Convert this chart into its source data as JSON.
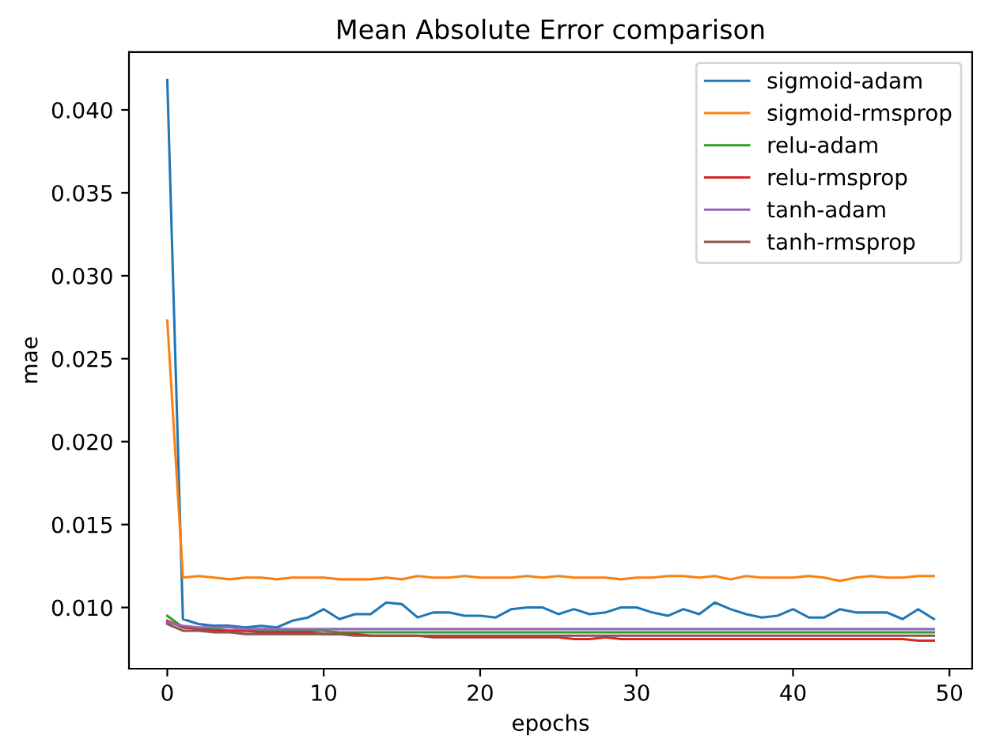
{
  "chart_data": {
    "type": "line",
    "title": "Mean Absolute Error comparison",
    "xlabel": "epochs",
    "ylabel": "mae",
    "x": [
      0,
      1,
      2,
      3,
      4,
      5,
      6,
      7,
      8,
      9,
      10,
      11,
      12,
      13,
      14,
      15,
      16,
      17,
      18,
      19,
      20,
      21,
      22,
      23,
      24,
      25,
      26,
      27,
      28,
      29,
      30,
      31,
      32,
      33,
      34,
      35,
      36,
      37,
      38,
      39,
      40,
      41,
      42,
      43,
      44,
      45,
      46,
      47,
      48,
      49
    ],
    "series": [
      {
        "name": "sigmoid-adam",
        "color": "#1f77b4",
        "values": [
          0.0418,
          0.0093,
          0.009,
          0.0089,
          0.0089,
          0.0088,
          0.0089,
          0.0088,
          0.0092,
          0.0094,
          0.0099,
          0.0093,
          0.0096,
          0.0096,
          0.0103,
          0.0102,
          0.0094,
          0.0097,
          0.0097,
          0.0095,
          0.0095,
          0.0094,
          0.0099,
          0.01,
          0.01,
          0.0096,
          0.0099,
          0.0096,
          0.0097,
          0.01,
          0.01,
          0.0097,
          0.0095,
          0.0099,
          0.0096,
          0.0103,
          0.0099,
          0.0096,
          0.0094,
          0.0095,
          0.0099,
          0.0094,
          0.0094,
          0.0099,
          0.0097,
          0.0097,
          0.0097,
          0.0093,
          0.0099,
          0.0093
        ]
      },
      {
        "name": "sigmoid-rmsprop",
        "color": "#ff7f0e",
        "values": [
          0.0273,
          0.0118,
          0.0119,
          0.0118,
          0.0117,
          0.0118,
          0.0118,
          0.0117,
          0.0118,
          0.0118,
          0.0118,
          0.0117,
          0.0117,
          0.0117,
          0.0118,
          0.0117,
          0.0119,
          0.0118,
          0.0118,
          0.0119,
          0.0118,
          0.0118,
          0.0118,
          0.0119,
          0.0118,
          0.0119,
          0.0118,
          0.0118,
          0.0118,
          0.0117,
          0.0118,
          0.0118,
          0.0119,
          0.0119,
          0.0118,
          0.0119,
          0.0117,
          0.0119,
          0.0118,
          0.0118,
          0.0118,
          0.0119,
          0.0118,
          0.0116,
          0.0118,
          0.0119,
          0.0118,
          0.0118,
          0.0119,
          0.0119
        ]
      },
      {
        "name": "relu-adam",
        "color": "#2ca02c",
        "values": [
          0.0095,
          0.0088,
          0.0087,
          0.0087,
          0.0086,
          0.0086,
          0.0086,
          0.0086,
          0.0086,
          0.0086,
          0.0086,
          0.0085,
          0.0085,
          0.0085,
          0.0085,
          0.0085,
          0.0085,
          0.0085,
          0.0085,
          0.0085,
          0.0085,
          0.0085,
          0.0085,
          0.0085,
          0.0085,
          0.0085,
          0.0085,
          0.0085,
          0.0085,
          0.0085,
          0.0085,
          0.0085,
          0.0085,
          0.0085,
          0.0085,
          0.0085,
          0.0085,
          0.0085,
          0.0085,
          0.0085,
          0.0085,
          0.0085,
          0.0085,
          0.0085,
          0.0085,
          0.0085,
          0.0085,
          0.0085,
          0.0085,
          0.0085
        ]
      },
      {
        "name": "relu-rmsprop",
        "color": "#d62728",
        "values": [
          0.0092,
          0.0088,
          0.0087,
          0.0086,
          0.0086,
          0.0086,
          0.0085,
          0.0085,
          0.0085,
          0.0085,
          0.0084,
          0.0084,
          0.0084,
          0.0083,
          0.0083,
          0.0083,
          0.0083,
          0.0082,
          0.0082,
          0.0082,
          0.0082,
          0.0082,
          0.0082,
          0.0082,
          0.0082,
          0.0082,
          0.0081,
          0.0081,
          0.0082,
          0.0081,
          0.0081,
          0.0081,
          0.0081,
          0.0081,
          0.0081,
          0.0081,
          0.0081,
          0.0081,
          0.0081,
          0.0081,
          0.0081,
          0.0081,
          0.0081,
          0.0081,
          0.0081,
          0.0081,
          0.0081,
          0.0081,
          0.008,
          0.008
        ]
      },
      {
        "name": "tanh-adam",
        "color": "#9467bd",
        "values": [
          0.0091,
          0.0089,
          0.0088,
          0.0088,
          0.0088,
          0.0087,
          0.0087,
          0.0087,
          0.0087,
          0.0087,
          0.0087,
          0.0087,
          0.0087,
          0.0087,
          0.0087,
          0.0087,
          0.0087,
          0.0087,
          0.0087,
          0.0087,
          0.0087,
          0.0087,
          0.0087,
          0.0087,
          0.0087,
          0.0087,
          0.0087,
          0.0087,
          0.0087,
          0.0087,
          0.0087,
          0.0087,
          0.0087,
          0.0087,
          0.0087,
          0.0087,
          0.0087,
          0.0087,
          0.0087,
          0.0087,
          0.0087,
          0.0087,
          0.0087,
          0.0087,
          0.0087,
          0.0087,
          0.0087,
          0.0087,
          0.0087,
          0.0087
        ]
      },
      {
        "name": "tanh-rmsprop",
        "color": "#8c564b",
        "values": [
          0.009,
          0.0086,
          0.0086,
          0.0085,
          0.0085,
          0.0084,
          0.0084,
          0.0084,
          0.0084,
          0.0084,
          0.0084,
          0.0084,
          0.0083,
          0.0083,
          0.0083,
          0.0083,
          0.0083,
          0.0083,
          0.0083,
          0.0083,
          0.0083,
          0.0083,
          0.0083,
          0.0083,
          0.0083,
          0.0083,
          0.0083,
          0.0083,
          0.0083,
          0.0083,
          0.0083,
          0.0083,
          0.0083,
          0.0083,
          0.0083,
          0.0083,
          0.0083,
          0.0083,
          0.0083,
          0.0083,
          0.0083,
          0.0083,
          0.0083,
          0.0083,
          0.0083,
          0.0083,
          0.0083,
          0.0083,
          0.0083,
          0.0083
        ]
      }
    ],
    "xlim": [
      -2.45,
      51.45
    ],
    "ylim": [
      0.00631,
      0.04349
    ],
    "xticks": [
      0,
      10,
      20,
      30,
      40,
      50
    ],
    "yticks": [
      {
        "value": 0.01,
        "label": "0.010"
      },
      {
        "value": 0.015,
        "label": "0.015"
      },
      {
        "value": 0.02,
        "label": "0.020"
      },
      {
        "value": 0.025,
        "label": "0.025"
      },
      {
        "value": 0.03,
        "label": "0.030"
      },
      {
        "value": 0.035,
        "label": "0.035"
      },
      {
        "value": 0.04,
        "label": "0.040"
      }
    ],
    "legend": "top right",
    "grid": false,
    "marker": "none",
    "line_style": "solid"
  }
}
